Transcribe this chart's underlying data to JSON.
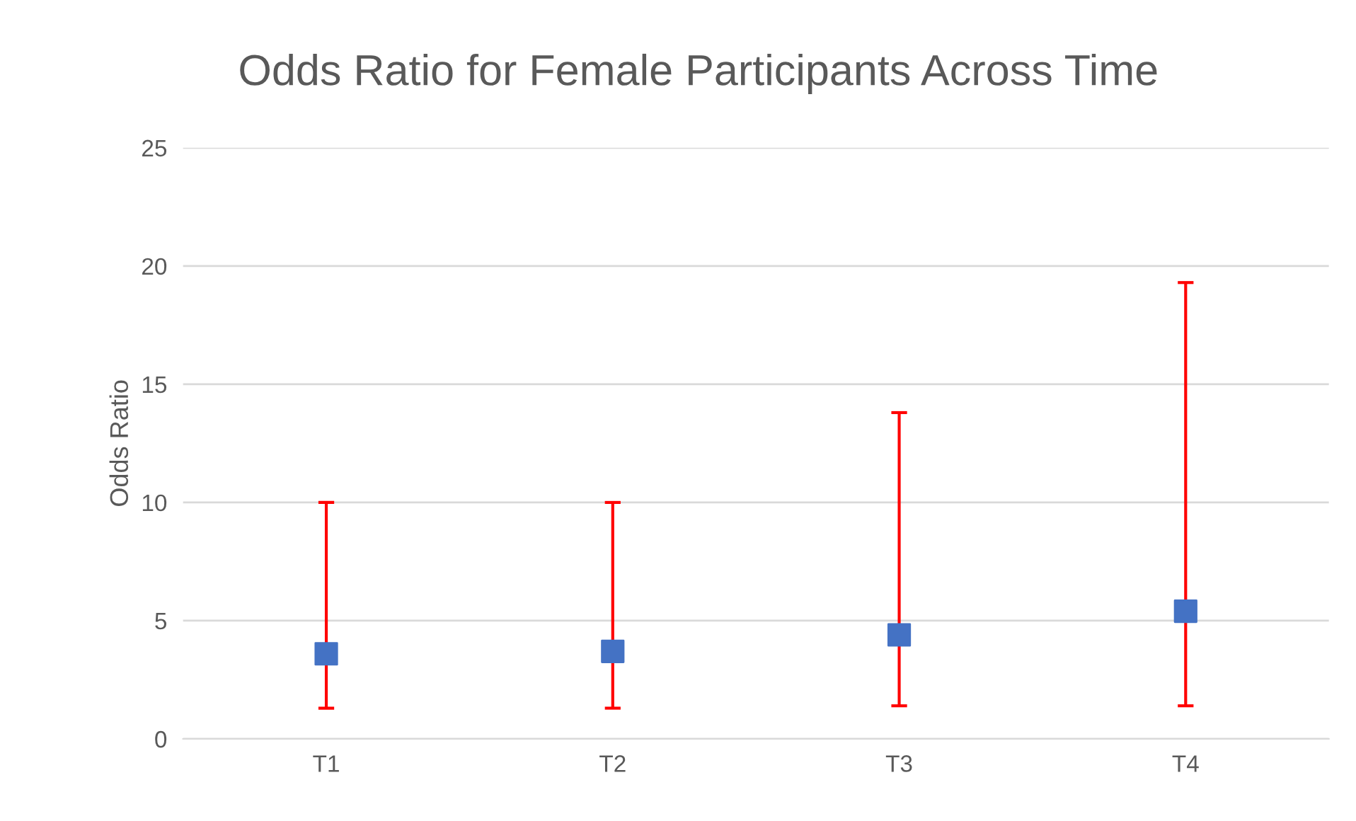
{
  "chart_data": {
    "type": "scatter",
    "title": "Odds Ratio for Female Participants Across Time",
    "ylabel": "Odds Ratio",
    "categories": [
      "T1",
      "T2",
      "T3",
      "T4"
    ],
    "series": [
      {
        "color": "#4472c4",
        "values": [
          3.6,
          3.7,
          4.4,
          5.4
        ],
        "errors": [
          [
            1.3,
            10.0
          ],
          [
            1.3,
            10.0
          ],
          [
            1.4,
            13.8
          ],
          [
            1.4,
            19.3
          ]
        ]
      }
    ],
    "ylim": [
      0,
      25
    ],
    "yticks": [
      0,
      5,
      10,
      15,
      20,
      25
    ],
    "grid": "y",
    "marker": "square"
  }
}
